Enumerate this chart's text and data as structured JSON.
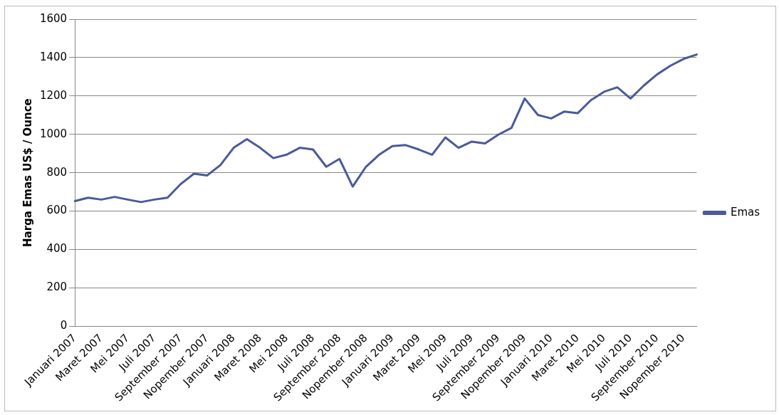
{
  "chart_data": {
    "type": "line",
    "ylabel": "Harga Emas US$ / Ounce",
    "categories": [
      "Januari 2007",
      null,
      "Maret 2007",
      null,
      "Mei 2007",
      null,
      "Juli 2007",
      null,
      "September 2007",
      null,
      "Nopember 2007",
      null,
      "Januari 2008",
      null,
      "Maret 2008",
      null,
      "Mei 2008",
      null,
      "Juli 2008",
      null,
      "September 2008",
      null,
      "Nopember 2008",
      null,
      "Januari 2009",
      null,
      "Maret 2009",
      null,
      "Mei 2009",
      null,
      "Juli 2009",
      null,
      "September 2009",
      null,
      "Nopember 2009",
      null,
      "Januari 2010",
      null,
      "Maret 2010",
      null,
      "Mei 2010",
      null,
      "Juli 2010",
      null,
      "September 2010",
      null,
      "Nopember 2010",
      null
    ],
    "series": [
      {
        "name": "Emas",
        "color": "#4a5a9a",
        "values": [
          652,
          670,
          660,
          674,
          660,
          647,
          660,
          670,
          741,
          795,
          786,
          840,
          930,
          975,
          930,
          876,
          894,
          930,
          921,
          831,
          872,
          728,
          831,
          894,
          939,
          944,
          921,
          894,
          984,
          930,
          962,
          953,
          998,
          1034,
          1187,
          1101,
          1083,
          1119,
          1110,
          1178,
          1222,
          1245,
          1187,
          1254,
          1312,
          1357,
          1393,
          1416
        ]
      }
    ],
    "ylim": [
      0,
      1600
    ],
    "yticks": [
      0,
      200,
      400,
      600,
      800,
      1000,
      1200,
      1400,
      1600
    ],
    "grid": "y",
    "legend": "right",
    "marker": "none",
    "line_style": "solid"
  }
}
